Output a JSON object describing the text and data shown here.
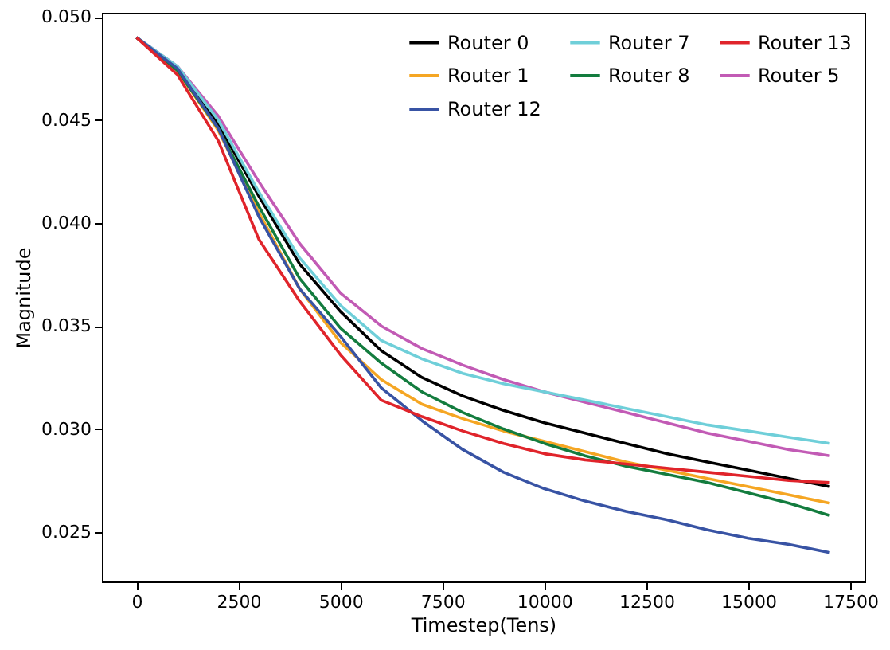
{
  "chart_data": {
    "type": "line",
    "xlabel": "Timestep(Tens)",
    "ylabel": "Magnitude",
    "x": [
      0,
      1000,
      2000,
      3000,
      4000,
      5000,
      6000,
      7000,
      8000,
      9000,
      10000,
      11000,
      12000,
      13000,
      14000,
      15000,
      16000,
      17000
    ],
    "series": [
      {
        "name": "Router 0",
        "color": "#000000",
        "values": [
          0.049,
          0.0475,
          0.0448,
          0.0413,
          0.038,
          0.0357,
          0.0338,
          0.0325,
          0.0316,
          0.0309,
          0.0303,
          0.0298,
          0.0293,
          0.0288,
          0.0284,
          0.028,
          0.0276,
          0.0272
        ]
      },
      {
        "name": "Router 1",
        "color": "#f5a623",
        "values": [
          0.049,
          0.0474,
          0.0445,
          0.0405,
          0.0368,
          0.0342,
          0.0324,
          0.0312,
          0.0305,
          0.0299,
          0.0294,
          0.0289,
          0.0284,
          0.028,
          0.0276,
          0.0272,
          0.0268,
          0.0264
        ]
      },
      {
        "name": "Router 5",
        "color": "#c25bb5",
        "values": [
          0.049,
          0.0476,
          0.0452,
          0.042,
          0.039,
          0.0366,
          0.035,
          0.0339,
          0.0331,
          0.0324,
          0.0318,
          0.0313,
          0.0308,
          0.0303,
          0.0298,
          0.0294,
          0.029,
          0.0287
        ]
      },
      {
        "name": "Router 7",
        "color": "#6fcfd9",
        "values": [
          0.049,
          0.0476,
          0.045,
          0.0415,
          0.0383,
          0.036,
          0.0343,
          0.0334,
          0.0327,
          0.0322,
          0.0318,
          0.0314,
          0.031,
          0.0306,
          0.0302,
          0.0299,
          0.0296,
          0.0293
        ]
      },
      {
        "name": "Router 8",
        "color": "#137c3e",
        "values": [
          0.049,
          0.0474,
          0.0446,
          0.0408,
          0.0373,
          0.0349,
          0.0332,
          0.0318,
          0.0308,
          0.03,
          0.0293,
          0.0287,
          0.0282,
          0.0278,
          0.0274,
          0.0269,
          0.0264,
          0.0258
        ]
      },
      {
        "name": "Router 12",
        "color": "#3853a4",
        "values": [
          0.049,
          0.0475,
          0.0446,
          0.0403,
          0.0368,
          0.0345,
          0.032,
          0.0304,
          0.029,
          0.0279,
          0.0271,
          0.0265,
          0.026,
          0.0256,
          0.0251,
          0.0247,
          0.0244,
          0.024
        ]
      },
      {
        "name": "Router 13",
        "color": "#e0242b",
        "values": [
          0.049,
          0.0472,
          0.044,
          0.0392,
          0.0362,
          0.0336,
          0.0314,
          0.0306,
          0.0299,
          0.0293,
          0.0288,
          0.0285,
          0.0283,
          0.0281,
          0.0279,
          0.0277,
          0.0275,
          0.0274
        ]
      }
    ],
    "xlim": [
      -850,
      17850
    ],
    "ylim": [
      0.0226,
      0.0502
    ],
    "xticks": [
      0,
      2500,
      5000,
      7500,
      10000,
      12500,
      15000,
      17500
    ],
    "yticks": [
      {
        "value": 0.025,
        "label": "0.025"
      },
      {
        "value": 0.03,
        "label": "0.030"
      },
      {
        "value": 0.035,
        "label": "0.035"
      },
      {
        "value": 0.04,
        "label": "0.040"
      },
      {
        "value": 0.045,
        "label": "0.045"
      },
      {
        "value": 0.05,
        "label": "0.050"
      }
    ],
    "legend": "top right"
  }
}
